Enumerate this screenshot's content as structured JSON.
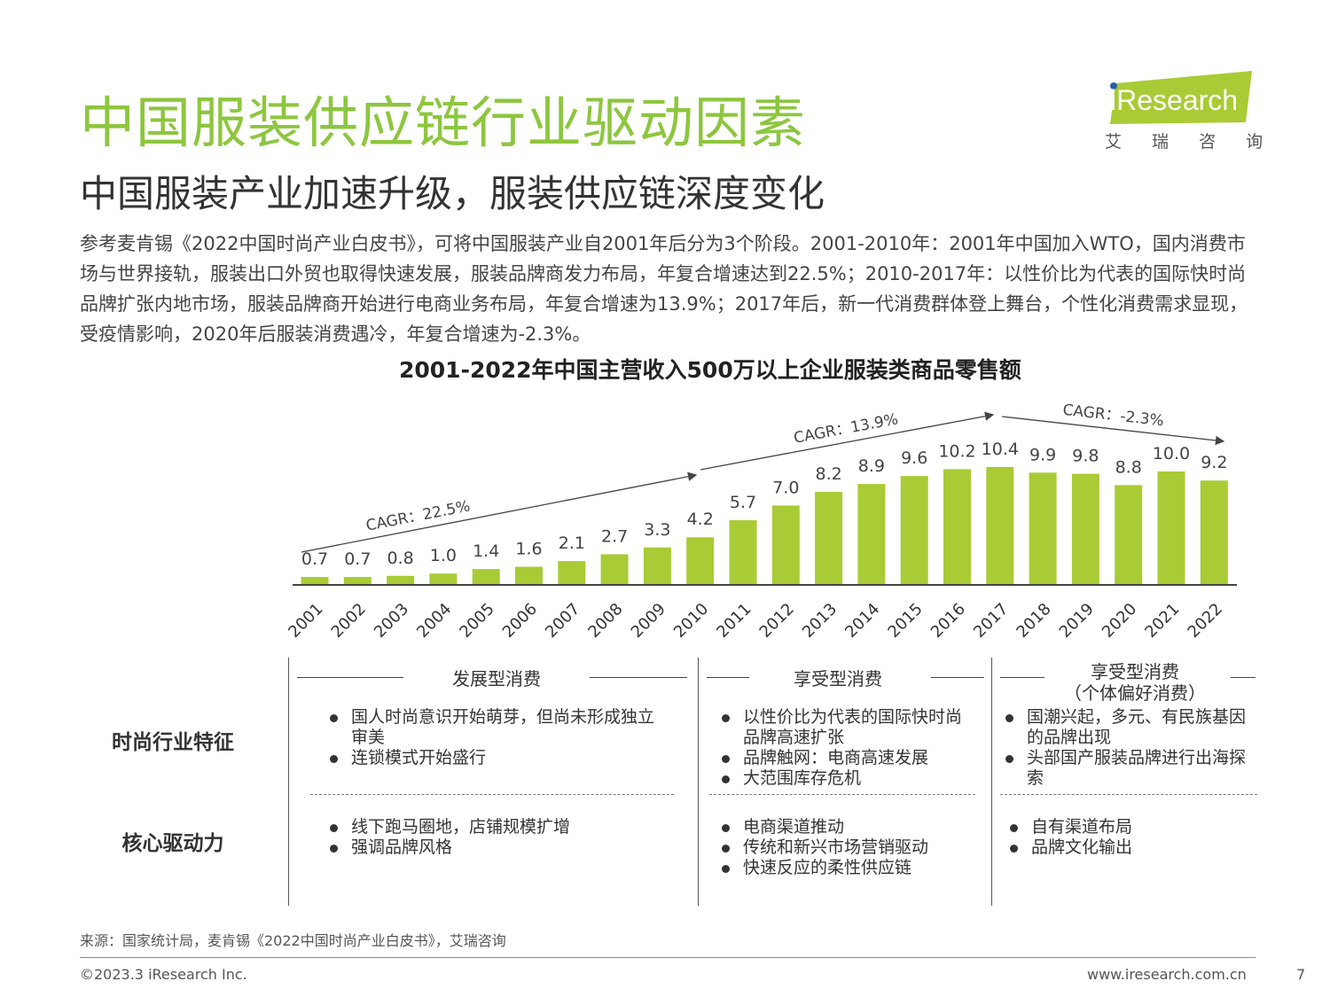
{
  "header": {
    "title": "中国服装供应链行业驱动因素",
    "subtitle": "中国服装产业加速升级，服装供应链深度变化",
    "intro": "参考麦肯锡《2022中国时尚产业白皮书》，可将中国服装产业自2001年后分为3个阶段。2001-2010年：2001年中国加入WTO，国内消费市场与世界接轨，服装出口外贸也取得快速发展，服装品牌商发力布局，年复合增速达到22.5%；2010-2017年：以性价比为代表的国际快时尚品牌扩张内地市场，服装品牌商开始进行电商业务布局，年复合增速为13.9%；2017年后，新一代消费群体登上舞台，个性化消费需求显现，受疫情影响，2020年后服装消费遇冷，年复合增速为-2.3%。"
  },
  "logo": {
    "brand": "iResearch",
    "cn": "艾 瑞 咨 询"
  },
  "chart_data": {
    "type": "bar",
    "title": "2001-2022年中国主营收入500万以上企业服装类商品零售额",
    "categories": [
      "2001",
      "2002",
      "2003",
      "2004",
      "2005",
      "2006",
      "2007",
      "2008",
      "2009",
      "2010",
      "2011",
      "2012",
      "2013",
      "2014",
      "2015",
      "2016",
      "2017",
      "2018",
      "2019",
      "2020",
      "2021",
      "2022"
    ],
    "values": [
      0.7,
      0.7,
      0.8,
      1.0,
      1.4,
      1.6,
      2.1,
      2.7,
      3.3,
      4.2,
      5.7,
      7.0,
      8.2,
      8.9,
      9.6,
      10.2,
      10.4,
      9.9,
      9.8,
      8.8,
      10.0,
      9.2
    ],
    "value_labels": [
      "0.7",
      "0.7",
      "0.8",
      "1.0",
      "1.4",
      "1.6",
      "2.1",
      "2.7",
      "3.3",
      "4.2",
      "5.7",
      "7.0",
      "8.2",
      "8.9",
      "9.6",
      "10.2",
      "10.4",
      "9.9",
      "9.8",
      "8.8",
      "10.0",
      "9.2"
    ],
    "annotations": [
      {
        "text": "CAGR：22.5%",
        "from": "2001",
        "to": "2010"
      },
      {
        "text": "CAGR：13.9%",
        "from": "2010",
        "to": "2017"
      },
      {
        "text": "CAGR：-2.3%",
        "from": "2017",
        "to": "2022"
      }
    ],
    "bar_color": "#a9cb35",
    "xlabel": "",
    "ylabel": ""
  },
  "phases": [
    {
      "label": "发展型消费"
    },
    {
      "label": "享受型消费"
    },
    {
      "label": "享受型消费\n（个体偏好消费）"
    }
  ],
  "rows": {
    "row1": "时尚行业特征",
    "row2": "核心驱动力"
  },
  "features": [
    [
      "国人时尚意识开始萌芽，但尚未形成独立审美",
      "连锁模式开始盛行"
    ],
    [
      "以性价比为代表的国际快时尚品牌高速扩张",
      "品牌触网：电商高速发展",
      "大范围库存危机"
    ],
    [
      "国潮兴起，多元、有民族基因的品牌出现",
      "头部国产服装品牌进行出海探索"
    ]
  ],
  "drivers": [
    [
      "线下跑马圈地，店铺规模扩增",
      "强调品牌风格"
    ],
    [
      "电商渠道推动",
      "传统和新兴市场营销驱动",
      "快速反应的柔性供应链"
    ],
    [
      "自有渠道布局",
      "品牌文化输出"
    ]
  ],
  "footer": {
    "source": "来源：国家统计局，麦肯锡《2022中国时尚产业白皮书》，艾瑞咨询",
    "copyright": "©2023.3 iResearch Inc.",
    "website": "www.iresearch.com.cn",
    "page": "7"
  }
}
